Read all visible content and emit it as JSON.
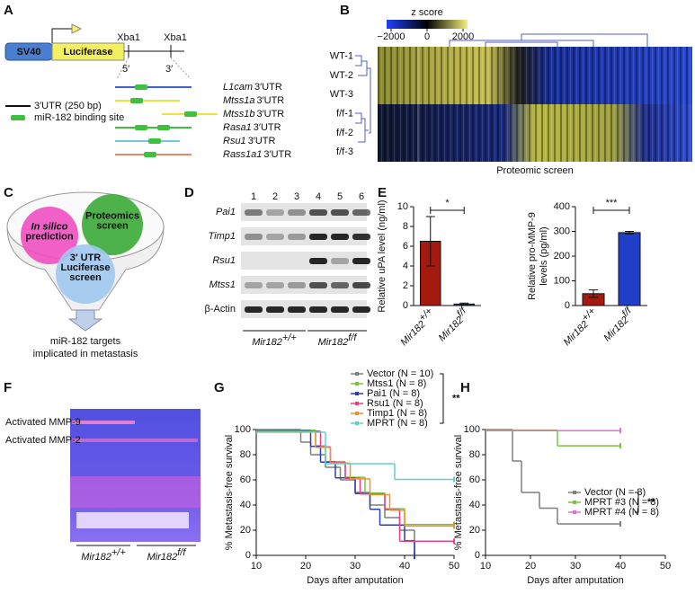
{
  "panels": {
    "A": {
      "label": "A",
      "promoter": "SV40",
      "reporter": "Luciferase",
      "sites": [
        "Xba1",
        "Xba1"
      ],
      "ends": [
        "5′",
        "3′"
      ],
      "legend": [
        "3′UTR (250 bp)",
        "miR-182 binding site"
      ],
      "utrs": [
        {
          "gene": "L1cam",
          "suffix": "3′UTR"
        },
        {
          "gene": "Mtss1a",
          "suffix": "3′UTR"
        },
        {
          "gene": "Mtss1b",
          "suffix": "3′UTR"
        },
        {
          "gene": "Rasa1",
          "suffix": "3′UTR"
        },
        {
          "gene": "Rsu1",
          "suffix": "3′UTR"
        },
        {
          "gene": "Rass1a1",
          "suffix": "3′UTR"
        }
      ]
    },
    "B": {
      "label": "B",
      "scale_title": "z score",
      "scale_ticks": [
        {
          "value": -2000,
          "label": "−2000"
        },
        0,
        2000
      ],
      "rows": [
        "WT-1",
        "WT-2",
        "WT-3",
        "f/f-1",
        "f/f-2",
        "f/f-3"
      ],
      "caption": "Proteomic screen"
    },
    "C": {
      "label": "C",
      "circles": [
        [
          "In silico",
          "prediction"
        ],
        [
          "Proteomics",
          "screen"
        ],
        [
          "3′ UTR",
          "Luciferase",
          "screen"
        ]
      ],
      "result": [
        "miR-182 targets",
        "implicated in metastasis"
      ]
    },
    "D": {
      "label": "D",
      "lanes": [
        "1",
        "2",
        "3",
        "4",
        "5",
        "6"
      ],
      "rows": [
        "Pai1",
        "Timp1",
        "Rsu1",
        "Mtss1",
        "β-Actin"
      ],
      "row_colors": [
        "#3aa935",
        "#3aa935",
        "#7fb2e0",
        "#7fb2e0",
        "#111111"
      ],
      "groups": [
        {
          "base": "Mir182",
          "sup": "+/+",
          "color": "#a31a0e"
        },
        {
          "base": "Mir182",
          "sup": "f/f",
          "color": "#1f3fc9"
        }
      ]
    },
    "E": {
      "label": "E"
    },
    "F": {
      "label": "F",
      "bands": [
        "Activated MMP-9",
        "Activated MMP-2"
      ],
      "groups": [
        {
          "base": "Mir182",
          "sup": "+/+",
          "color": "#a31a0e"
        },
        {
          "base": "Mir182",
          "sup": "f/f",
          "color": "#1f3fc9"
        }
      ]
    },
    "G": {
      "label": "G"
    },
    "H": {
      "label": "H"
    }
  },
  "chart_data": [
    {
      "type": "bar",
      "ylabel": "Relative uPA level (ng/ml)",
      "categories": [
        "Mir182",
        "Mir182"
      ],
      "category_superscripts": [
        "+/+",
        "f/f"
      ],
      "values": [
        6.5,
        0.15
      ],
      "errors": [
        2.5,
        0.1
      ],
      "colors": [
        "#a31a0e",
        "#1f3fc9"
      ],
      "ylim": [
        0,
        10
      ],
      "yticks": [
        0,
        2,
        4,
        6,
        8,
        10
      ],
      "significance": "*"
    },
    {
      "type": "bar",
      "ylabel": [
        "Relative pro-MMP-9",
        "levels (pg/ml)"
      ],
      "categories": [
        "Mir182",
        "Mir182"
      ],
      "category_superscripts": [
        "+/+",
        "f/f"
      ],
      "values": [
        48,
        295
      ],
      "errors": [
        15,
        5
      ],
      "colors": [
        "#a31a0e",
        "#1f3fc9"
      ],
      "ylim": [
        0,
        400
      ],
      "yticks": [
        0,
        100,
        200,
        300,
        400
      ],
      "significance": "***"
    },
    {
      "type": "survival",
      "ylabel": "% Metastasis-free survival",
      "xlabel": "Days after amputation",
      "xlim": [
        10,
        50
      ],
      "xticks": [
        10,
        20,
        30,
        40,
        50
      ],
      "ylim": [
        0,
        100
      ],
      "yticks": [
        0,
        20,
        40,
        60,
        80,
        100
      ],
      "significance": "**",
      "legend": "top-right",
      "series": [
        {
          "name": "Vector (N = 10)",
          "color": "#7f7f7f",
          "x": [
            10,
            19,
            21,
            24,
            27,
            30,
            33,
            36,
            39,
            42
          ],
          "values": [
            100,
            90,
            80,
            70,
            60,
            50,
            40,
            30,
            20,
            0
          ]
        },
        {
          "name": "Mtss1 (N = 8)",
          "color": "#7bc143",
          "x": [
            10,
            22,
            24,
            28,
            32,
            36,
            40,
            50
          ],
          "values": [
            100,
            87.5,
            75,
            62.5,
            50,
            37.5,
            25,
            25
          ]
        },
        {
          "name": "Pai1 (N = 8)",
          "color": "#2e3eb0",
          "x": [
            10,
            21,
            23,
            26,
            30,
            33,
            35,
            40,
            42
          ],
          "values": [
            100,
            87.5,
            75,
            62.5,
            50,
            37.5,
            25,
            12.5,
            0
          ]
        },
        {
          "name": "Rsu1 (N = 8)",
          "color": "#e8408f",
          "x": [
            10,
            23,
            25,
            28,
            31,
            36,
            39,
            50
          ],
          "values": [
            100,
            87.5,
            75,
            62.5,
            50,
            37.5,
            12.5,
            12.5
          ]
        },
        {
          "name": "Timp1 (N = 8)",
          "color": "#f0922b",
          "x": [
            10,
            22,
            25,
            29,
            33,
            37,
            40,
            50
          ],
          "values": [
            100,
            87.5,
            75,
            62.5,
            50,
            37.5,
            25,
            25
          ]
        },
        {
          "name": "MPRT (N = 8)",
          "color": "#5fd3c9",
          "x": [
            10,
            24,
            38,
            50
          ],
          "values": [
            100,
            75,
            62.5,
            62.5
          ]
        }
      ]
    },
    {
      "type": "survival",
      "ylabel": "% Metastasis-free survival",
      "xlabel": "Days after amputation",
      "xlim": [
        10,
        50
      ],
      "xticks": [
        10,
        20,
        30,
        40,
        50
      ],
      "ylim": [
        0,
        100
      ],
      "yticks": [
        0,
        20,
        40,
        60,
        80,
        100
      ],
      "significance": "**",
      "legend": "bottom-right",
      "series": [
        {
          "name": "Vector (N = 8)",
          "color": "#7f7f7f",
          "x": [
            10,
            16,
            18,
            22,
            26,
            40
          ],
          "values": [
            100,
            75,
            50,
            37.5,
            25,
            25
          ]
        },
        {
          "name": "MPRT #3 (N = 8)",
          "color": "#7bc143",
          "x": [
            10,
            26,
            40
          ],
          "values": [
            100,
            87.5,
            87.5
          ]
        },
        {
          "name": "MPRT #4 (N = 8)",
          "color": "#e36fd0",
          "x": [
            10,
            40
          ],
          "values": [
            100,
            100
          ]
        }
      ]
    }
  ]
}
